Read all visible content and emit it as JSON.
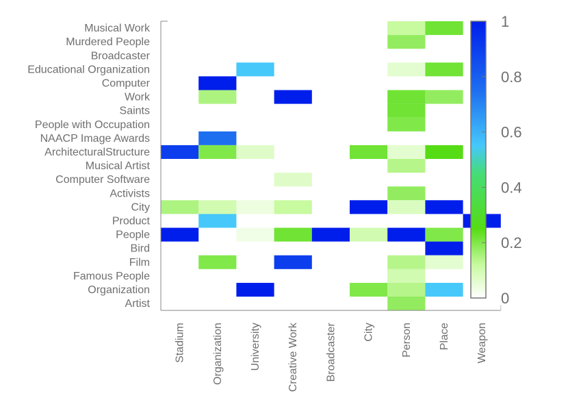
{
  "chart_data": {
    "type": "heatmap",
    "x_categories": [
      "Stadium",
      "Organization",
      "University",
      "Creative Work",
      "Broadcaster",
      "City",
      "Person",
      "Place",
      "Weapon"
    ],
    "y_categories": [
      "Musical Work",
      "Murdered People",
      "Broadcaster",
      "Educational Organization",
      "Computer",
      "Work",
      "Saints",
      "People with Occupation",
      "NAACP Image Awards",
      "ArchitecturalStructure",
      "Musical Artist",
      "Computer Software",
      "Activists",
      "City",
      "Product",
      "People",
      "Bird",
      "Film",
      "Famous People",
      "Organization",
      "Artist"
    ],
    "values": [
      [
        0,
        0,
        0,
        0,
        0,
        0,
        0.12,
        0.22,
        0
      ],
      [
        0,
        0,
        0,
        0,
        0,
        0,
        0.18,
        0,
        0
      ],
      [
        0,
        0,
        0,
        0,
        0,
        0,
        0,
        0,
        0
      ],
      [
        0,
        0,
        0.55,
        0,
        0,
        0,
        0.06,
        0.22,
        0
      ],
      [
        0,
        1.0,
        0,
        0,
        0,
        0,
        0,
        0,
        0
      ],
      [
        0,
        0.15,
        0,
        1.0,
        0,
        0,
        0.22,
        0.18,
        0
      ],
      [
        0,
        0,
        0,
        0,
        0,
        0,
        0.22,
        0,
        0
      ],
      [
        0,
        0,
        0,
        0,
        0,
        0,
        0.2,
        0,
        0
      ],
      [
        0,
        0.75,
        0,
        0,
        0,
        0,
        0,
        0,
        0
      ],
      [
        0.9,
        0.2,
        0.07,
        0,
        0,
        0.22,
        0.06,
        0.25,
        0
      ],
      [
        0,
        0,
        0,
        0,
        0,
        0,
        0.14,
        0,
        0
      ],
      [
        0,
        0,
        0,
        0.07,
        0,
        0,
        0,
        0,
        0
      ],
      [
        0,
        0,
        0,
        0,
        0,
        0,
        0.18,
        0,
        0
      ],
      [
        0.15,
        0.1,
        0.04,
        0.12,
        0,
        1.0,
        0.08,
        1.0,
        0
      ],
      [
        0,
        0.55,
        0,
        0,
        0,
        0,
        0,
        0,
        1.0
      ],
      [
        1.0,
        0,
        0.03,
        0.22,
        1.0,
        0.1,
        1.0,
        0.2,
        0
      ],
      [
        0,
        0,
        0,
        0,
        0,
        0,
        0,
        1.0,
        0
      ],
      [
        0,
        0.2,
        0,
        0.9,
        0,
        0,
        0.14,
        0.06,
        0
      ],
      [
        0,
        0,
        0,
        0,
        0,
        0,
        0.1,
        0,
        0
      ],
      [
        0,
        0,
        1.0,
        0,
        0,
        0.2,
        0.14,
        0.55,
        0
      ],
      [
        0,
        0,
        0,
        0,
        0,
        0,
        0.18,
        0,
        0
      ]
    ],
    "colorbar": {
      "min": 0,
      "max": 1,
      "ticks": [
        "0",
        "0.2",
        "0.4",
        "0.6",
        "0.8",
        "1"
      ]
    },
    "colors": {
      "low": "#ffffff",
      "mid_green": "#55dd00",
      "mid_cyan": "#44ccff",
      "high": "#0022ee"
    },
    "title": "",
    "xlabel": "",
    "ylabel": ""
  }
}
